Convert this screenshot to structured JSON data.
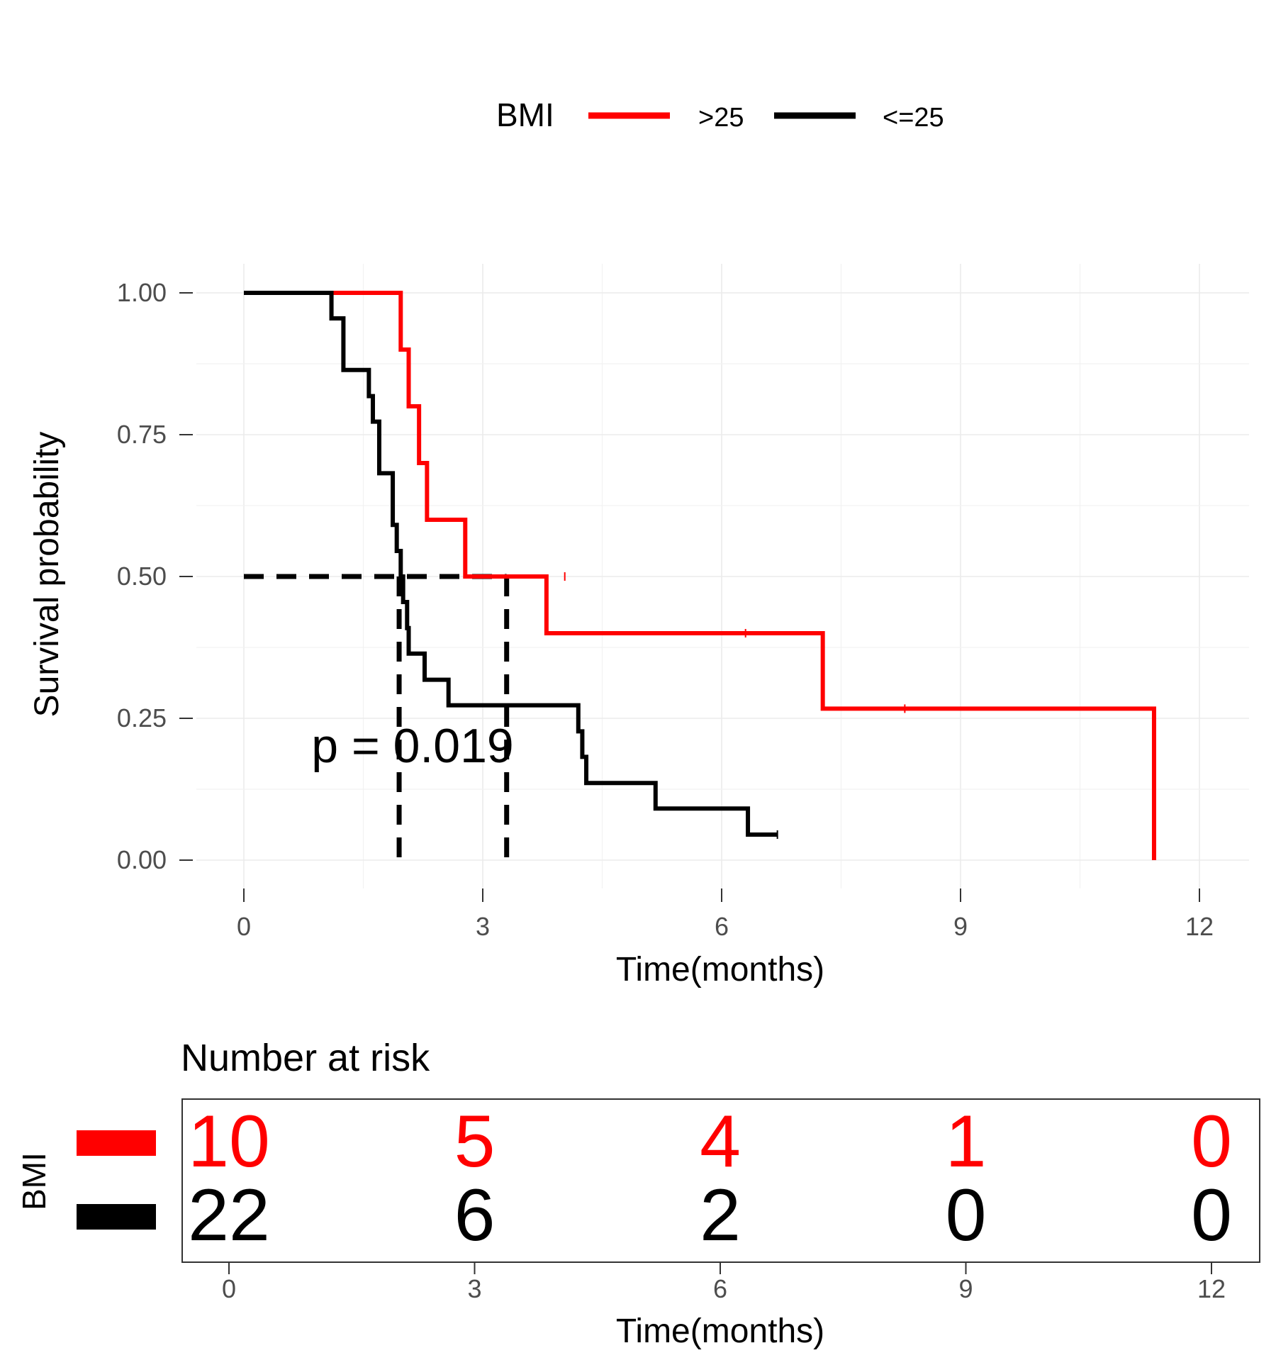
{
  "chart_data": [
    {
      "type": "line",
      "subtype": "kaplan-meier",
      "title": "",
      "xlabel": "Time(months)",
      "ylabel": "Survival probability",
      "xlim": [
        0,
        12
      ],
      "ylim": [
        0,
        1
      ],
      "x_ticks": [
        0,
        3,
        6,
        9,
        12
      ],
      "y_ticks": [
        0,
        0.25,
        0.5,
        0.75,
        1.0
      ],
      "y_tick_labels": [
        "0.00",
        "0.25",
        "0.50",
        "0.75",
        "1.00"
      ],
      "grid": true,
      "legend": {
        "title": "BMI",
        "position": "top",
        "entries": [
          {
            "label": ">25",
            "color": "#ff0000"
          },
          {
            "label": "<=25",
            "color": "#000000"
          }
        ]
      },
      "annotation": "p = 0.019",
      "median_survival_lines": [
        {
          "series": "<=25",
          "time": 1.95,
          "survival": 0.5
        },
        {
          "series": ">25",
          "time": 3.3,
          "survival": 0.5
        }
      ],
      "series": [
        {
          "name": ">25",
          "color": "#ff0000",
          "steps": [
            [
              0,
              1.0
            ],
            [
              1.97,
              0.9
            ],
            [
              2.07,
              0.8
            ],
            [
              2.2,
              0.7
            ],
            [
              2.3,
              0.6
            ],
            [
              2.78,
              0.5
            ],
            [
              3.8,
              0.4
            ],
            [
              7.27,
              0.267
            ],
            [
              11.43,
              0.0
            ]
          ],
          "censored": [
            [
              4.03,
              0.5
            ],
            [
              6.3,
              0.4
            ],
            [
              8.3,
              0.267
            ]
          ]
        },
        {
          "name": "<=25",
          "color": "#000000",
          "steps": [
            [
              0,
              1.0
            ],
            [
              1.1,
              0.955
            ],
            [
              1.25,
              0.864
            ],
            [
              1.57,
              0.818
            ],
            [
              1.62,
              0.773
            ],
            [
              1.7,
              0.682
            ],
            [
              1.87,
              0.591
            ],
            [
              1.92,
              0.545
            ],
            [
              1.97,
              0.5
            ],
            [
              2.0,
              0.455
            ],
            [
              2.05,
              0.409
            ],
            [
              2.07,
              0.364
            ],
            [
              2.27,
              0.318
            ],
            [
              2.57,
              0.273
            ],
            [
              4.2,
              0.227
            ],
            [
              4.25,
              0.182
            ],
            [
              4.3,
              0.136
            ],
            [
              5.17,
              0.091
            ],
            [
              6.33,
              0.045
            ]
          ],
          "end_time": 6.7,
          "censored": [
            [
              6.7,
              0.045
            ]
          ]
        }
      ]
    },
    {
      "type": "table",
      "title": "Number at risk",
      "xlabel": "Time(months)",
      "ylabel": "BMI",
      "x_ticks": [
        0,
        3,
        6,
        9,
        12
      ],
      "rows": [
        {
          "name": ">25",
          "color": "#ff0000",
          "values": [
            10,
            5,
            4,
            1,
            0
          ]
        },
        {
          "name": "<=25",
          "color": "#000000",
          "values": [
            22,
            6,
            2,
            0,
            0
          ]
        }
      ]
    }
  ]
}
